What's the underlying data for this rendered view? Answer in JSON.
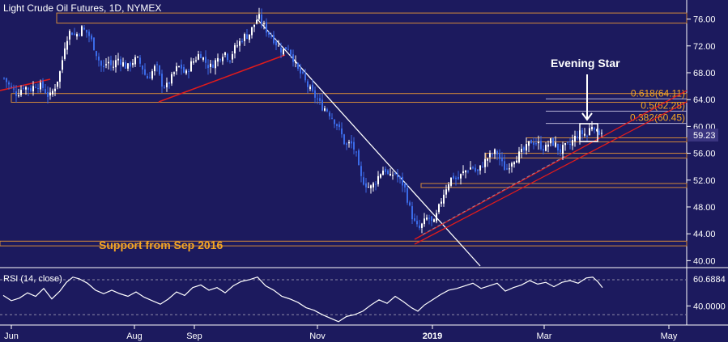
{
  "chart_data": [
    {
      "type": "candlestick",
      "title": "Light Crude Oil Futures, 1D, NYMEX",
      "ylim": [
        39.2,
        78.6
      ],
      "y_ticks": [
        40,
        44,
        48,
        52,
        56,
        60,
        64,
        68,
        72,
        76
      ],
      "y_tick_labels": [
        "40.00",
        "44.00",
        "48.00",
        "52.00",
        "56.00",
        "60.00",
        "64.00",
        "68.00",
        "72.00",
        "76.00"
      ],
      "x_tick_labels": [
        "Jun",
        "Aug",
        "Sep",
        "Nov",
        "2019",
        "Mar",
        "May"
      ],
      "last_price": 59.23,
      "last_price_label": "59.23",
      "grid": false,
      "bull_color": "#ffffff",
      "bear_color": "#3b6be8",
      "close_path": [
        [
          0,
          67.2
        ],
        [
          8,
          65.8
        ],
        [
          16,
          64.8
        ],
        [
          24,
          66.0
        ],
        [
          32,
          65.5
        ],
        [
          40,
          66.3
        ],
        [
          48,
          65.8
        ],
        [
          56,
          64.3
        ],
        [
          64,
          66.2
        ],
        [
          70,
          68.5
        ],
        [
          76,
          72.8
        ],
        [
          82,
          74.3
        ],
        [
          88,
          73.5
        ],
        [
          96,
          74.6
        ],
        [
          104,
          73.8
        ],
        [
          110,
          72.2
        ],
        [
          116,
          70.2
        ],
        [
          122,
          68.4
        ],
        [
          128,
          69.8
        ],
        [
          134,
          68.7
        ],
        [
          140,
          70.2
        ],
        [
          146,
          69.5
        ],
        [
          152,
          68.7
        ],
        [
          158,
          69.6
        ],
        [
          164,
          70.1
        ],
        [
          170,
          69.0
        ],
        [
          176,
          67.1
        ],
        [
          182,
          68.0
        ],
        [
          188,
          69.1
        ],
        [
          194,
          66.5
        ],
        [
          200,
          65.8
        ],
        [
          206,
          67.0
        ],
        [
          212,
          68.5
        ],
        [
          218,
          69.0
        ],
        [
          224,
          67.6
        ],
        [
          230,
          69.2
        ],
        [
          236,
          70.0
        ],
        [
          242,
          71.0
        ],
        [
          248,
          69.7
        ],
        [
          254,
          68.8
        ],
        [
          260,
          69.6
        ],
        [
          266,
          70.3
        ],
        [
          272,
          71.2
        ],
        [
          278,
          70.0
        ],
        [
          284,
          71.5
        ],
        [
          290,
          72.4
        ],
        [
          296,
          73.4
        ],
        [
          302,
          73.6
        ],
        [
          308,
          75.0
        ],
        [
          314,
          76.4
        ],
        [
          320,
          75.1
        ],
        [
          326,
          74.0
        ],
        [
          332,
          73.2
        ],
        [
          338,
          72.0
        ],
        [
          344,
          71.2
        ],
        [
          350,
          72.0
        ],
        [
          356,
          70.5
        ],
        [
          362,
          68.5
        ],
        [
          368,
          67.6
        ],
        [
          374,
          66.2
        ],
        [
          380,
          65.0
        ],
        [
          386,
          64.2
        ],
        [
          392,
          63.0
        ],
        [
          398,
          62.6
        ],
        [
          404,
          61.6
        ],
        [
          410,
          60.5
        ],
        [
          416,
          59.0
        ],
        [
          422,
          57.0
        ],
        [
          428,
          57.6
        ],
        [
          434,
          56.2
        ],
        [
          440,
          52.4
        ],
        [
          446,
          51.5
        ],
        [
          452,
          50.8
        ],
        [
          458,
          51.6
        ],
        [
          464,
          53.0
        ],
        [
          470,
          53.8
        ],
        [
          476,
          52.2
        ],
        [
          482,
          53.2
        ],
        [
          488,
          52.0
        ],
        [
          494,
          51.2
        ],
        [
          500,
          48.2
        ],
        [
          506,
          45.8
        ],
        [
          512,
          44.6
        ],
        [
          518,
          45.6
        ],
        [
          524,
          46.6
        ],
        [
          530,
          45.2
        ],
        [
          536,
          47.5
        ],
        [
          542,
          49.8
        ],
        [
          548,
          51.5
        ],
        [
          554,
          52.6
        ],
        [
          560,
          52.0
        ],
        [
          566,
          53.0
        ],
        [
          572,
          53.6
        ],
        [
          578,
          54.0
        ],
        [
          584,
          53.0
        ],
        [
          590,
          54.2
        ],
        [
          596,
          55.2
        ],
        [
          602,
          55.8
        ],
        [
          608,
          56.3
        ],
        [
          614,
          54.6
        ],
        [
          620,
          53.4
        ],
        [
          626,
          54.8
        ],
        [
          632,
          55.4
        ],
        [
          638,
          56.0
        ],
        [
          644,
          56.6
        ],
        [
          650,
          57.8
        ],
        [
          656,
          57.6
        ],
        [
          662,
          57.2
        ],
        [
          668,
          56.6
        ],
        [
          674,
          57.8
        ],
        [
          680,
          57.4
        ],
        [
          686,
          56.3
        ],
        [
          692,
          56.9
        ],
        [
          698,
          57.1
        ],
        [
          704,
          58.2
        ],
        [
          710,
          58.9
        ],
        [
          716,
          59.0
        ],
        [
          720,
          58.6
        ],
        [
          724,
          60.0
        ],
        [
          728,
          60.4
        ],
        [
          732,
          59.0
        ],
        [
          738,
          59.4
        ]
      ],
      "levels": [
        {
          "value": 76.0,
          "band": [
            75.4,
            76.9
          ]
        },
        {
          "value": 64.7,
          "band": [
            63.6,
            64.9
          ]
        },
        {
          "value": 58.0,
          "band": [
            57.7,
            58.3
          ]
        },
        {
          "value": 55.6,
          "band": [
            55.3,
            56.0
          ]
        },
        {
          "value": 51.2,
          "band": [
            50.9,
            51.5
          ]
        },
        {
          "value": 42.5,
          "band": [
            42.2,
            42.9
          ]
        }
      ],
      "fib_levels": [
        {
          "label": "0.618(64.11)",
          "value": 64.11
        },
        {
          "label": "0.5(62.28)",
          "value": 62.28
        },
        {
          "label": "0.382(60.45)",
          "value": 60.45
        }
      ],
      "annotations": {
        "evening_star": "Evening Star",
        "support": "Support from Sep 2016"
      }
    },
    {
      "type": "line",
      "title": "RSI (14, close)",
      "ylim": [
        20,
        82
      ],
      "overbought": 70,
      "oversold": 30,
      "y_ticks": [
        40
      ],
      "y_tick_labels": [
        "40.0000"
      ],
      "last_value": 60.6884,
      "last_value_label": "60.6884",
      "color": "#ffffff",
      "path": [
        [
          0,
          52
        ],
        [
          10,
          46
        ],
        [
          20,
          49
        ],
        [
          30,
          55
        ],
        [
          40,
          51
        ],
        [
          50,
          60
        ],
        [
          60,
          48
        ],
        [
          70,
          57
        ],
        [
          78,
          67
        ],
        [
          86,
          73
        ],
        [
          94,
          71
        ],
        [
          104,
          66
        ],
        [
          114,
          58
        ],
        [
          124,
          54
        ],
        [
          134,
          58
        ],
        [
          144,
          54
        ],
        [
          154,
          51
        ],
        [
          164,
          56
        ],
        [
          174,
          50
        ],
        [
          184,
          46
        ],
        [
          194,
          42
        ],
        [
          204,
          48
        ],
        [
          214,
          56
        ],
        [
          224,
          52
        ],
        [
          234,
          61
        ],
        [
          244,
          64
        ],
        [
          254,
          58
        ],
        [
          264,
          61
        ],
        [
          274,
          55
        ],
        [
          284,
          63
        ],
        [
          294,
          68
        ],
        [
          304,
          70
        ],
        [
          314,
          73
        ],
        [
          324,
          63
        ],
        [
          334,
          58
        ],
        [
          344,
          51
        ],
        [
          354,
          48
        ],
        [
          364,
          44
        ],
        [
          374,
          38
        ],
        [
          384,
          35
        ],
        [
          394,
          30
        ],
        [
          404,
          26
        ],
        [
          414,
          22
        ],
        [
          424,
          28
        ],
        [
          434,
          30
        ],
        [
          444,
          34
        ],
        [
          454,
          41
        ],
        [
          464,
          47
        ],
        [
          474,
          43
        ],
        [
          484,
          51
        ],
        [
          494,
          45
        ],
        [
          504,
          38
        ],
        [
          512,
          34
        ],
        [
          520,
          41
        ],
        [
          530,
          47
        ],
        [
          540,
          53
        ],
        [
          550,
          58
        ],
        [
          560,
          60
        ],
        [
          570,
          63
        ],
        [
          580,
          66
        ],
        [
          590,
          60
        ],
        [
          600,
          63
        ],
        [
          610,
          66
        ],
        [
          620,
          57
        ],
        [
          630,
          61
        ],
        [
          640,
          64
        ],
        [
          650,
          69
        ],
        [
          660,
          65
        ],
        [
          670,
          67
        ],
        [
          680,
          62
        ],
        [
          690,
          67
        ],
        [
          700,
          69
        ],
        [
          710,
          66
        ],
        [
          720,
          72
        ],
        [
          728,
          73
        ],
        [
          734,
          68
        ],
        [
          740,
          61
        ]
      ]
    }
  ]
}
